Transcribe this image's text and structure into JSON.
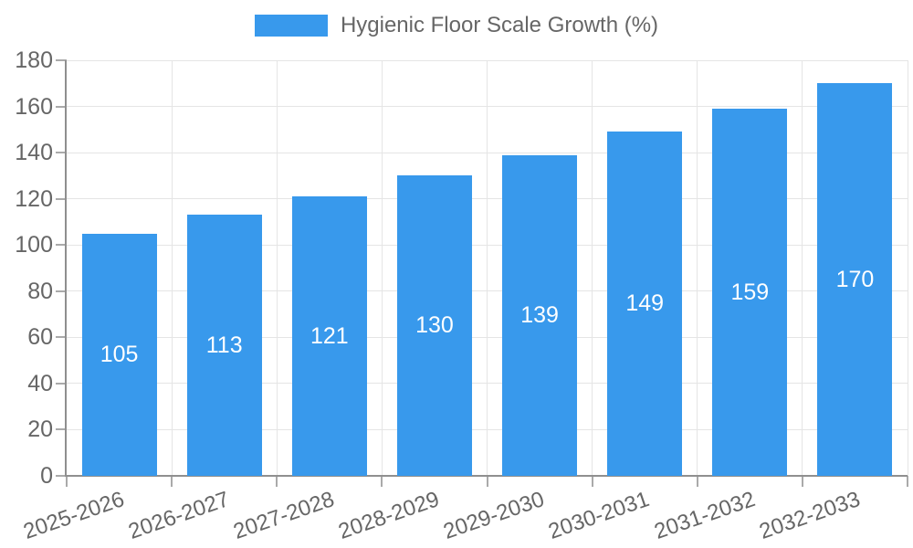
{
  "chart_data": {
    "type": "bar",
    "title": "Hygienic Floor Scale Growth (%)",
    "categories": [
      "2025-2026",
      "2026-2027",
      "2027-2028",
      "2028-2029",
      "2029-2030",
      "2030-2031",
      "2031-2032",
      "2032-2033"
    ],
    "values": [
      105,
      113,
      121,
      130,
      139,
      149,
      159,
      170
    ],
    "xlabel": "",
    "ylabel": "",
    "ylim": [
      0,
      180
    ],
    "yticks": [
      0,
      20,
      40,
      60,
      80,
      100,
      120,
      140,
      160,
      180
    ],
    "grid": true,
    "legend_position": "top-center",
    "value_labels": "inside-center",
    "xlabel_rotation_deg": -19,
    "colors": {
      "bar": "#3899ec",
      "value_label_text": "#ffffff",
      "axis_text": "#666666",
      "legend_text": "#666666",
      "gridline": "#e5e5e5",
      "axis_line": "#8f8f8f",
      "tick_mark": "#aaaaaa",
      "background": "#ffffff"
    }
  }
}
